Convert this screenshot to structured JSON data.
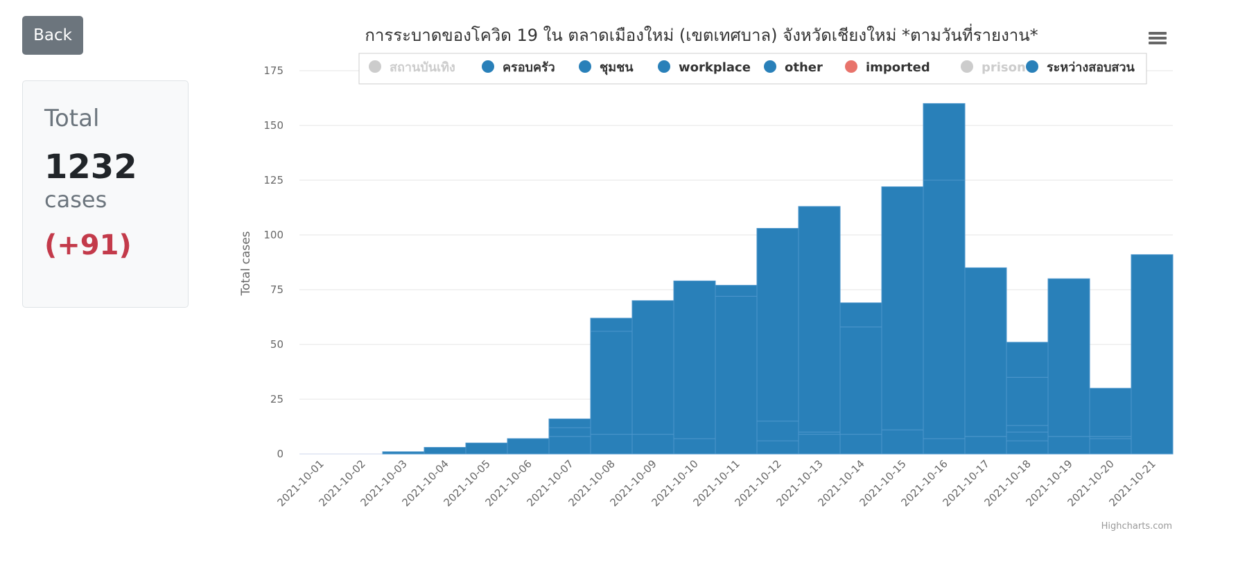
{
  "back_button": {
    "label": "Back"
  },
  "summary": {
    "title": "Total",
    "total": "1232",
    "unit": "cases",
    "delta": "(+91)"
  },
  "credits": "Highcharts.com",
  "menu_icon": "hamburger-menu-icon",
  "colors": {
    "series": "#2980b9",
    "imported": "#e8736b",
    "hidden": "#cccccc",
    "delta": "#c33a4a",
    "button": "#6c757d"
  },
  "chart_data": {
    "type": "bar",
    "stacked": true,
    "title": "การระบาดของโควิด 19 ใน ตลาดเมืองใหม่ (เขตเทศบาล) จังหวัดเชียงใหม่ *ตามวันที่รายงาน*",
    "ylabel": "Total cases",
    "xlabel": "",
    "ylim": [
      0,
      175
    ],
    "yticks": [
      0,
      25,
      50,
      75,
      100,
      125,
      150,
      175
    ],
    "grid": true,
    "legend_position": "top",
    "categories": [
      "2021-10-01",
      "2021-10-02",
      "2021-10-03",
      "2021-10-04",
      "2021-10-05",
      "2021-10-06",
      "2021-10-07",
      "2021-10-08",
      "2021-10-09",
      "2021-10-10",
      "2021-10-11",
      "2021-10-12",
      "2021-10-13",
      "2021-10-14",
      "2021-10-15",
      "2021-10-16",
      "2021-10-17",
      "2021-10-18",
      "2021-10-19",
      "2021-10-20",
      "2021-10-21"
    ],
    "series": [
      {
        "name": "สถานบันเทิง",
        "color": "#cccccc",
        "visible": false,
        "values": [
          0,
          0,
          0,
          0,
          0,
          0,
          0,
          0,
          0,
          0,
          0,
          0,
          0,
          0,
          0,
          0,
          0,
          0,
          0,
          0,
          0
        ]
      },
      {
        "name": "ครอบครัว",
        "color": "#2980b9",
        "visible": true,
        "values": [
          0,
          0,
          0,
          0,
          0,
          0,
          8,
          9,
          9,
          7,
          0,
          6,
          9,
          9,
          11,
          7,
          8,
          6,
          8,
          7,
          0
        ]
      },
      {
        "name": "ชุมชน",
        "color": "#2980b9",
        "visible": true,
        "values": [
          0,
          0,
          0,
          0,
          0,
          0,
          0,
          0,
          0,
          0,
          0,
          0,
          0,
          0,
          0,
          0,
          0,
          4,
          0,
          0,
          0
        ]
      },
      {
        "name": "workplace",
        "color": "#2980b9",
        "visible": true,
        "values": [
          0,
          0,
          0,
          0,
          0,
          0,
          0,
          0,
          0,
          0,
          0,
          9,
          1,
          0,
          0,
          0,
          0,
          3,
          0,
          1,
          0
        ]
      },
      {
        "name": "other",
        "color": "#2980b9",
        "visible": true,
        "values": [
          0,
          0,
          0,
          0,
          0,
          0,
          4,
          47,
          0,
          0,
          72,
          0,
          0,
          49,
          0,
          118,
          0,
          22,
          0,
          0,
          0
        ]
      },
      {
        "name": "imported",
        "color": "#e8736b",
        "visible": true,
        "values": [
          0,
          0,
          0,
          0,
          0,
          0,
          0,
          0,
          0,
          0,
          0,
          0,
          0,
          0,
          0,
          0,
          0,
          0,
          0,
          0,
          0
        ]
      },
      {
        "name": "prison",
        "color": "#cccccc",
        "visible": false,
        "values": [
          0,
          0,
          0,
          0,
          0,
          0,
          0,
          0,
          0,
          0,
          0,
          0,
          0,
          0,
          0,
          0,
          0,
          0,
          0,
          0,
          0
        ]
      },
      {
        "name": "ระหว่างสอบสวน",
        "color": "#2980b9",
        "visible": true,
        "values": [
          0,
          0,
          1,
          3,
          5,
          7,
          4,
          6,
          61,
          72,
          5,
          88,
          103,
          11,
          111,
          35,
          77,
          16,
          72,
          22,
          91
        ]
      }
    ]
  }
}
